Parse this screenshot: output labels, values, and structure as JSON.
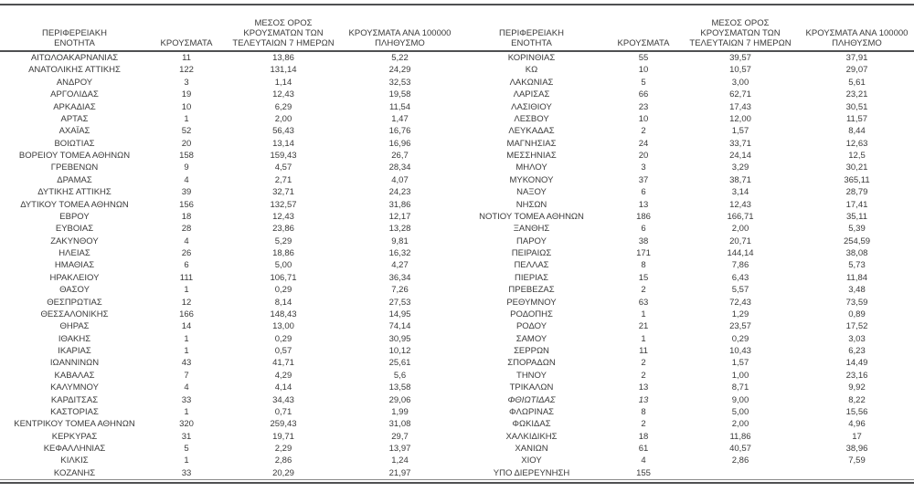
{
  "table": {
    "columns": [
      "ΠΕΡΙΦΕΡΕΙΑΚΗ ΕΝΟΤΗΤΑ",
      "ΚΡΟΥΣΜΑΤΑ",
      "ΜΕΣΟΣ ΟΡΟΣ ΚΡΟΥΣΜΑΤΩΝ ΤΩΝ ΤΕΛΕΥΤΑΙΩΝ 7 ΗΜΕΡΩΝ",
      "ΚΡΟΥΣΜΑΤΑ ΑΝΑ 100000 ΠΛΗΘΥΣΜΟ"
    ],
    "left_rows": [
      {
        "name": "ΑΙΤΩΛΟΑΚΑΡΝΑΝΙΑΣ",
        "cases": "11",
        "avg7": "13,86",
        "per100k": "5,22"
      },
      {
        "name": "ΑΝΑΤΟΛΙΚΗΣ ΑΤΤΙΚΗΣ",
        "cases": "122",
        "avg7": "131,14",
        "per100k": "24,29"
      },
      {
        "name": "ΑΝΔΡΟΥ",
        "cases": "3",
        "avg7": "1,14",
        "per100k": "32,53"
      },
      {
        "name": "ΑΡΓΟΛΙΔΑΣ",
        "cases": "19",
        "avg7": "12,43",
        "per100k": "19,58"
      },
      {
        "name": "ΑΡΚΑΔΙΑΣ",
        "cases": "10",
        "avg7": "6,29",
        "per100k": "11,54"
      },
      {
        "name": "ΑΡΤΑΣ",
        "cases": "1",
        "avg7": "2,00",
        "per100k": "1,47"
      },
      {
        "name": "ΑΧΑΪΑΣ",
        "cases": "52",
        "avg7": "56,43",
        "per100k": "16,76"
      },
      {
        "name": "ΒΟΙΩΤΙΑΣ",
        "cases": "20",
        "avg7": "13,14",
        "per100k": "16,96"
      },
      {
        "name": "ΒΟΡΕΙΟΥ ΤΟΜΕΑ ΑΘΗΝΩΝ",
        "cases": "158",
        "avg7": "159,43",
        "per100k": "26,7"
      },
      {
        "name": "ΓΡΕΒΕΝΩΝ",
        "cases": "9",
        "avg7": "4,57",
        "per100k": "28,34"
      },
      {
        "name": "ΔΡΑΜΑΣ",
        "cases": "4",
        "avg7": "2,71",
        "per100k": "4,07"
      },
      {
        "name": "ΔΥΤΙΚΗΣ ΑΤΤΙΚΗΣ",
        "cases": "39",
        "avg7": "32,71",
        "per100k": "24,23"
      },
      {
        "name": "ΔΥΤΙΚΟΥ ΤΟΜΕΑ ΑΘΗΝΩΝ",
        "cases": "156",
        "avg7": "132,57",
        "per100k": "31,86"
      },
      {
        "name": "ΕΒΡΟΥ",
        "cases": "18",
        "avg7": "12,43",
        "per100k": "12,17"
      },
      {
        "name": "ΕΥΒΟΙΑΣ",
        "cases": "28",
        "avg7": "23,86",
        "per100k": "13,28"
      },
      {
        "name": "ΖΑΚΥΝΘΟΥ",
        "cases": "4",
        "avg7": "5,29",
        "per100k": "9,81"
      },
      {
        "name": "ΗΛΕΙΑΣ",
        "cases": "26",
        "avg7": "18,86",
        "per100k": "16,32"
      },
      {
        "name": "ΗΜΑΘΙΑΣ",
        "cases": "6",
        "avg7": "5,00",
        "per100k": "4,27"
      },
      {
        "name": "ΗΡΑΚΛΕΙΟΥ",
        "cases": "111",
        "avg7": "106,71",
        "per100k": "36,34"
      },
      {
        "name": "ΘΑΣΟΥ",
        "cases": "1",
        "avg7": "0,29",
        "per100k": "7,26"
      },
      {
        "name": "ΘΕΣΠΡΩΤΙΑΣ",
        "cases": "12",
        "avg7": "8,14",
        "per100k": "27,53"
      },
      {
        "name": "ΘΕΣΣΑΛΟΝΙΚΗΣ",
        "cases": "166",
        "avg7": "148,43",
        "per100k": "14,95"
      },
      {
        "name": "ΘΗΡΑΣ",
        "cases": "14",
        "avg7": "13,00",
        "per100k": "74,14"
      },
      {
        "name": "ΙΘΑΚΗΣ",
        "cases": "1",
        "avg7": "0,29",
        "per100k": "30,95"
      },
      {
        "name": "ΙΚΑΡΙΑΣ",
        "cases": "1",
        "avg7": "0,57",
        "per100k": "10,12"
      },
      {
        "name": "ΙΩΑΝΝΙΝΩΝ",
        "cases": "43",
        "avg7": "41,71",
        "per100k": "25,61"
      },
      {
        "name": "ΚΑΒΑΛΑΣ",
        "cases": "7",
        "avg7": "4,29",
        "per100k": "5,6"
      },
      {
        "name": "ΚΑΛΥΜΝΟΥ",
        "cases": "4",
        "avg7": "4,14",
        "per100k": "13,58"
      },
      {
        "name": "ΚΑΡΔΙΤΣΑΣ",
        "cases": "33",
        "avg7": "34,43",
        "per100k": "29,06"
      },
      {
        "name": "ΚΑΣΤΟΡΙΑΣ",
        "cases": "1",
        "avg7": "0,71",
        "per100k": "1,99"
      },
      {
        "name": "ΚΕΝΤΡΙΚΟΥ ΤΟΜΕΑ ΑΘΗΝΩΝ",
        "cases": "320",
        "avg7": "259,43",
        "per100k": "31,08"
      },
      {
        "name": "ΚΕΡΚΥΡΑΣ",
        "cases": "31",
        "avg7": "19,71",
        "per100k": "29,7"
      },
      {
        "name": "ΚΕΦΑΛΛΗΝΙΑΣ",
        "cases": "5",
        "avg7": "2,29",
        "per100k": "13,97"
      },
      {
        "name": "ΚΙΛΚΙΣ",
        "cases": "1",
        "avg7": "2,86",
        "per100k": "1,24"
      },
      {
        "name": "ΚΟΖΑΝΗΣ",
        "cases": "33",
        "avg7": "20,29",
        "per100k": "21,97"
      }
    ],
    "right_rows": [
      {
        "name": "ΚΟΡΙΝΘΙΑΣ",
        "cases": "55",
        "avg7": "39,57",
        "per100k": "37,91"
      },
      {
        "name": "ΚΩ",
        "cases": "10",
        "avg7": "10,57",
        "per100k": "29,07"
      },
      {
        "name": "ΛΑΚΩΝΙΑΣ",
        "cases": "5",
        "avg7": "3,00",
        "per100k": "5,61"
      },
      {
        "name": "ΛΑΡΙΣΑΣ",
        "cases": "66",
        "avg7": "62,71",
        "per100k": "23,21"
      },
      {
        "name": "ΛΑΣΙΘΙΟΥ",
        "cases": "23",
        "avg7": "17,43",
        "per100k": "30,51"
      },
      {
        "name": "ΛΕΣΒΟΥ",
        "cases": "10",
        "avg7": "12,00",
        "per100k": "11,57"
      },
      {
        "name": "ΛΕΥΚΑΔΑΣ",
        "cases": "2",
        "avg7": "1,57",
        "per100k": "8,44"
      },
      {
        "name": "ΜΑΓΝΗΣΙΑΣ",
        "cases": "24",
        "avg7": "33,71",
        "per100k": "12,63"
      },
      {
        "name": "ΜΕΣΣΗΝΙΑΣ",
        "cases": "20",
        "avg7": "24,14",
        "per100k": "12,5"
      },
      {
        "name": "ΜΗΛΟΥ",
        "cases": "3",
        "avg7": "3,29",
        "per100k": "30,21"
      },
      {
        "name": "ΜΥΚΟΝΟΥ",
        "cases": "37",
        "avg7": "38,71",
        "per100k": "365,11"
      },
      {
        "name": "ΝΑΞΟΥ",
        "cases": "6",
        "avg7": "3,14",
        "per100k": "28,79"
      },
      {
        "name": "ΝΗΣΩΝ",
        "cases": "13",
        "avg7": "12,43",
        "per100k": "17,41"
      },
      {
        "name": "ΝΟΤΙΟΥ ΤΟΜΕΑ ΑΘΗΝΩΝ",
        "cases": "186",
        "avg7": "166,71",
        "per100k": "35,11"
      },
      {
        "name": "ΞΑΝΘΗΣ",
        "cases": "6",
        "avg7": "2,00",
        "per100k": "5,39"
      },
      {
        "name": "ΠΑΡΟΥ",
        "cases": "38",
        "avg7": "20,71",
        "per100k": "254,59"
      },
      {
        "name": "ΠΕΙΡΑΙΩΣ",
        "cases": "171",
        "avg7": "144,14",
        "per100k": "38,08"
      },
      {
        "name": "ΠΕΛΛΑΣ",
        "cases": "8",
        "avg7": "7,86",
        "per100k": "5,73"
      },
      {
        "name": "ΠΙΕΡΙΑΣ",
        "cases": "15",
        "avg7": "6,43",
        "per100k": "11,84"
      },
      {
        "name": "ΠΡΕΒΕΖΑΣ",
        "cases": "2",
        "avg7": "5,57",
        "per100k": "3,48"
      },
      {
        "name": "ΡΕΘΥΜΝΟΥ",
        "cases": "63",
        "avg7": "72,43",
        "per100k": "73,59"
      },
      {
        "name": "ΡΟΔΟΠΗΣ",
        "cases": "1",
        "avg7": "1,29",
        "per100k": "0,89"
      },
      {
        "name": "ΡΟΔΟΥ",
        "cases": "21",
        "avg7": "23,57",
        "per100k": "17,52"
      },
      {
        "name": "ΣΑΜΟΥ",
        "cases": "1",
        "avg7": "0,29",
        "per100k": "3,03"
      },
      {
        "name": "ΣΕΡΡΩΝ",
        "cases": "11",
        "avg7": "10,43",
        "per100k": "6,23"
      },
      {
        "name": "ΣΠΟΡΑΔΩΝ",
        "cases": "2",
        "avg7": "1,57",
        "per100k": "14,49"
      },
      {
        "name": "ΤΗΝΟΥ",
        "cases": "2",
        "avg7": "1,00",
        "per100k": "23,16"
      },
      {
        "name": "ΤΡΙΚΑΛΩΝ",
        "cases": "13",
        "avg7": "8,71",
        "per100k": "9,92"
      },
      {
        "name": "ΦΘΙΩΤΙΔΑΣ",
        "cases": "13",
        "avg7": "9,00",
        "per100k": "8,22",
        "italic": true
      },
      {
        "name": "ΦΛΩΡΙΝΑΣ",
        "cases": "8",
        "avg7": "5,00",
        "per100k": "15,56"
      },
      {
        "name": "ΦΩΚΙΔΑΣ",
        "cases": "2",
        "avg7": "2,00",
        "per100k": "4,96"
      },
      {
        "name": "ΧΑΛΚΙΔΙΚΗΣ",
        "cases": "18",
        "avg7": "11,86",
        "per100k": "17"
      },
      {
        "name": "ΧΑΝΙΩΝ",
        "cases": "61",
        "avg7": "40,57",
        "per100k": "38,96"
      },
      {
        "name": "ΧΙΟΥ",
        "cases": "4",
        "avg7": "2,86",
        "per100k": "7,59"
      },
      {
        "name": "ΥΠΟ ΔΙΕΡΕΥΝΗΣΗ",
        "cases": "155",
        "avg7": "",
        "per100k": ""
      }
    ]
  },
  "colors": {
    "rule": "#4f5052",
    "text": "#3a3a3a",
    "background": "#ffffff"
  }
}
